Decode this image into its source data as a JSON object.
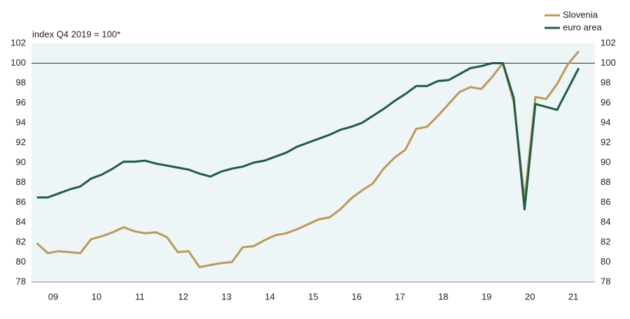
{
  "chart_data": {
    "type": "line",
    "annotation": "index Q4 2019 = 100*",
    "series": [
      {
        "name": "Slovenia",
        "color": "#b89a5a",
        "values": [
          81.9,
          80.9,
          81.1,
          81.0,
          80.9,
          82.3,
          82.6,
          83.0,
          83.5,
          83.1,
          82.9,
          83.0,
          82.5,
          81.0,
          81.1,
          79.5,
          79.7,
          79.9,
          80.0,
          81.5,
          81.6,
          82.2,
          82.7,
          82.9,
          83.3,
          83.8,
          84.3,
          84.5,
          85.3,
          86.4,
          87.2,
          87.9,
          89.4,
          90.5,
          91.3,
          93.4,
          93.6,
          94.7,
          95.9,
          97.1,
          97.6,
          97.4,
          98.6,
          100.0,
          96.1,
          86.3,
          96.6,
          96.4,
          97.9,
          99.9,
          101.2
        ]
      },
      {
        "name": "euro area",
        "color": "#1f5c45",
        "values": [
          86.5,
          86.5,
          86.9,
          87.3,
          87.6,
          88.4,
          88.8,
          89.4,
          90.1,
          90.1,
          90.2,
          89.9,
          89.7,
          89.5,
          89.3,
          88.9,
          88.6,
          89.1,
          89.4,
          89.6,
          90.0,
          90.2,
          90.6,
          91.0,
          91.6,
          92.0,
          92.4,
          92.8,
          93.3,
          93.6,
          94.0,
          94.7,
          95.4,
          96.2,
          96.9,
          97.7,
          97.7,
          98.2,
          98.3,
          98.9,
          99.5,
          99.7,
          100.0,
          100.0,
          96.5,
          85.3,
          95.9,
          95.6,
          95.3,
          97.4,
          99.5
        ]
      }
    ],
    "xlim": [
      -0.5,
      51.5
    ],
    "xticks": [
      {
        "value": 1.5,
        "label": "09"
      },
      {
        "value": 5.5,
        "label": "10"
      },
      {
        "value": 9.5,
        "label": "11"
      },
      {
        "value": 13.5,
        "label": "12"
      },
      {
        "value": 17.5,
        "label": "13"
      },
      {
        "value": 21.5,
        "label": "14"
      },
      {
        "value": 25.5,
        "label": "15"
      },
      {
        "value": 29.5,
        "label": "16"
      },
      {
        "value": 33.5,
        "label": "17"
      },
      {
        "value": 37.5,
        "label": "18"
      },
      {
        "value": 41.5,
        "label": "19"
      },
      {
        "value": 45.5,
        "label": "20"
      },
      {
        "value": 49.5,
        "label": "21"
      }
    ],
    "ylim": [
      78,
      102
    ],
    "yticks": [
      78,
      80,
      82,
      84,
      86,
      88,
      90,
      92,
      94,
      96,
      98,
      100,
      102
    ],
    "y2lim": [
      78,
      102
    ],
    "y2ticks": [
      78,
      80,
      82,
      84,
      86,
      88,
      90,
      92,
      94,
      96,
      98,
      100,
      102
    ],
    "reference_line": 100,
    "legend": "top-right"
  }
}
